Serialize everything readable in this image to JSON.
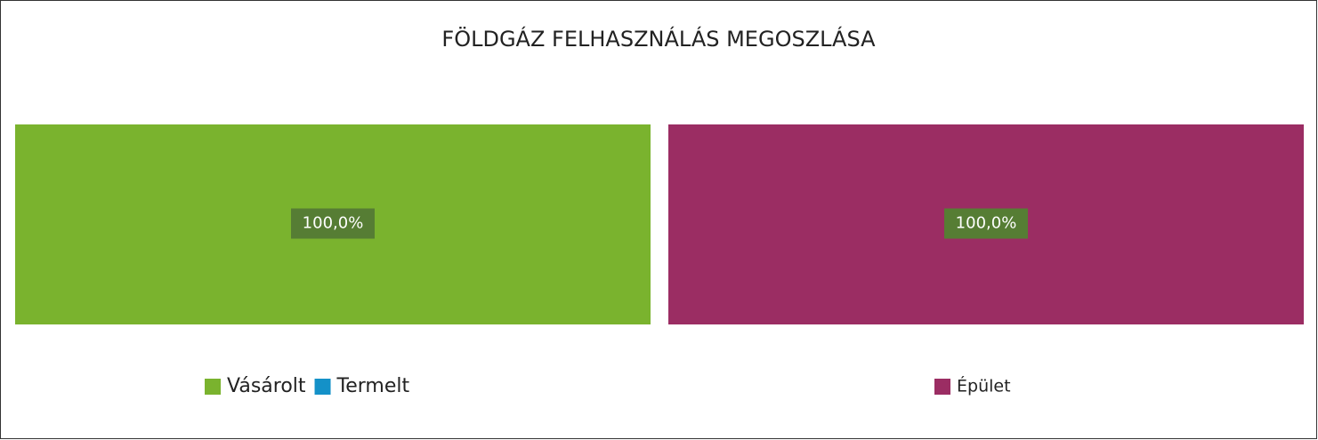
{
  "title": "FÖLDGÁZ FELHASZNÁLÁS MEGOSZLÁSA",
  "chart_data": [
    {
      "type": "bar",
      "xlim": [
        0,
        100
      ],
      "series": [
        {
          "name": "Vásárolt",
          "color": "#7ab32e",
          "values": [
            100
          ],
          "value_labels": [
            "100,0%"
          ]
        },
        {
          "name": "Termelt",
          "color": "#1491c8",
          "values": [
            0
          ]
        }
      ]
    },
    {
      "type": "bar",
      "xlim": [
        0,
        100
      ],
      "series": [
        {
          "name": "Épület",
          "color": "#9b2d63",
          "values": [
            100
          ],
          "value_labels": [
            "100,0%"
          ]
        }
      ]
    }
  ]
}
